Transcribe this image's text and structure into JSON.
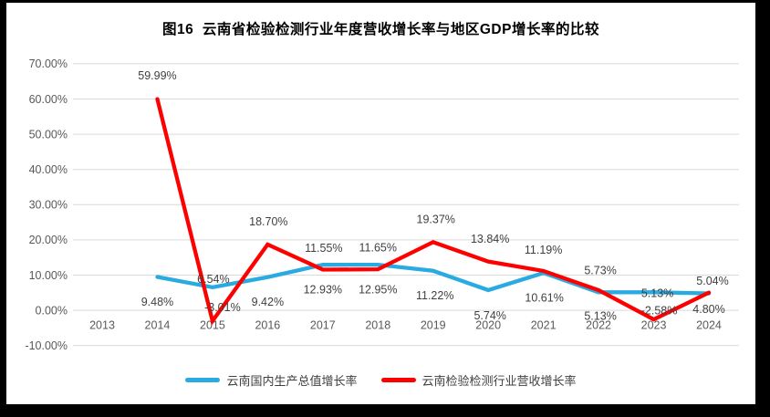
{
  "chart_data": {
    "type": "line",
    "title": "图16  云南省检验检测行业年度营收增长率与地区GDP增长率的比较",
    "categories": [
      "2013",
      "2014",
      "2015",
      "2016",
      "2017",
      "2018",
      "2019",
      "2020",
      "2021",
      "2022",
      "2023",
      "2024"
    ],
    "y_axis": {
      "min": -10,
      "max": 70,
      "step": 10,
      "ticks": [
        {
          "label": "70.00%",
          "value": 70
        },
        {
          "label": "60.00%",
          "value": 60
        },
        {
          "label": "50.00%",
          "value": 50
        },
        {
          "label": "40.00%",
          "value": 40
        },
        {
          "label": "30.00%",
          "value": 30
        },
        {
          "label": "20.00%",
          "value": 20
        },
        {
          "label": "10.00%",
          "value": 10
        },
        {
          "label": "0.00%",
          "value": 0
        },
        {
          "label": "-10.00%",
          "value": -10
        }
      ]
    },
    "grid": true,
    "legend_position": "bottom",
    "series": [
      {
        "name": "云南国内生产总值增长率",
        "color": "#29ABE2",
        "points": [
          {
            "year": 2014,
            "value": 9.48,
            "label": "9.48%",
            "dx": 0,
            "dy": 27
          },
          {
            "year": 2015,
            "value": 6.54,
            "label": "6.54%",
            "dx": 1,
            "dy": -9
          },
          {
            "year": 2016,
            "value": 9.42,
            "label": "9.42%",
            "dx": 0,
            "dy": 27
          },
          {
            "year": 2017,
            "value": 12.93,
            "label": "12.93%",
            "dx": 0,
            "dy": 27
          },
          {
            "year": 2018,
            "value": 12.95,
            "label": "12.95%",
            "dx": 0,
            "dy": 27
          },
          {
            "year": 2019,
            "value": 11.22,
            "label": "11.22%",
            "dx": 2,
            "dy": 27
          },
          {
            "year": 2020,
            "value": 5.74,
            "label": "5.74%",
            "dx": 2,
            "dy": 28
          },
          {
            "year": 2021,
            "value": 10.61,
            "label": "10.61%",
            "dx": 1,
            "dy": 27
          },
          {
            "year": 2022,
            "value": 5.13,
            "label": "5.13%",
            "dx": 2,
            "dy": 26
          },
          {
            "year": 2023,
            "value": 5.13,
            "label": "5.13%",
            "dx": 4,
            "dy": 1
          },
          {
            "year": 2024,
            "value": 4.8,
            "label": "4.80%",
            "dx": 0,
            "dy": 17
          }
        ]
      },
      {
        "name": "云南检验检测行业营收增长率",
        "color": "#FE0000",
        "points": [
          {
            "year": 2014,
            "value": 59.99,
            "label": "59.99%",
            "dx": 0,
            "dy": -26
          },
          {
            "year": 2015,
            "value": -3.01,
            "label": "-3.01%",
            "dx": 11,
            "dy": -15
          },
          {
            "year": 2016,
            "value": 18.7,
            "label": "18.70%",
            "dx": 1,
            "dy": -25
          },
          {
            "year": 2017,
            "value": 11.55,
            "label": "11.55%",
            "dx": 1,
            "dy": -24
          },
          {
            "year": 2018,
            "value": 11.65,
            "label": "11.65%",
            "dx": 0,
            "dy": -24
          },
          {
            "year": 2019,
            "value": 19.37,
            "label": "19.37%",
            "dx": 3,
            "dy": -25
          },
          {
            "year": 2020,
            "value": 13.84,
            "label": "13.84%",
            "dx": 2,
            "dy": -25
          },
          {
            "year": 2021,
            "value": 11.19,
            "label": "11.19%",
            "dx": 0,
            "dy": -23
          },
          {
            "year": 2022,
            "value": 5.73,
            "label": "5.73%",
            "dx": 2,
            "dy": -22
          },
          {
            "year": 2023,
            "value": -2.58,
            "label": "-2.58%",
            "dx": 6,
            "dy": -10
          },
          {
            "year": 2024,
            "value": 5.04,
            "label": "5.04%",
            "dx": 4,
            "dy": -13
          }
        ]
      }
    ],
    "colors": {
      "grid": "#D9D9D9",
      "axis_text": "#595959",
      "data_label_text": "#3F3F3F",
      "title_text": "#000000",
      "legend_text": "#404040",
      "background": "#FFFFFF",
      "frame": "#000000"
    }
  }
}
